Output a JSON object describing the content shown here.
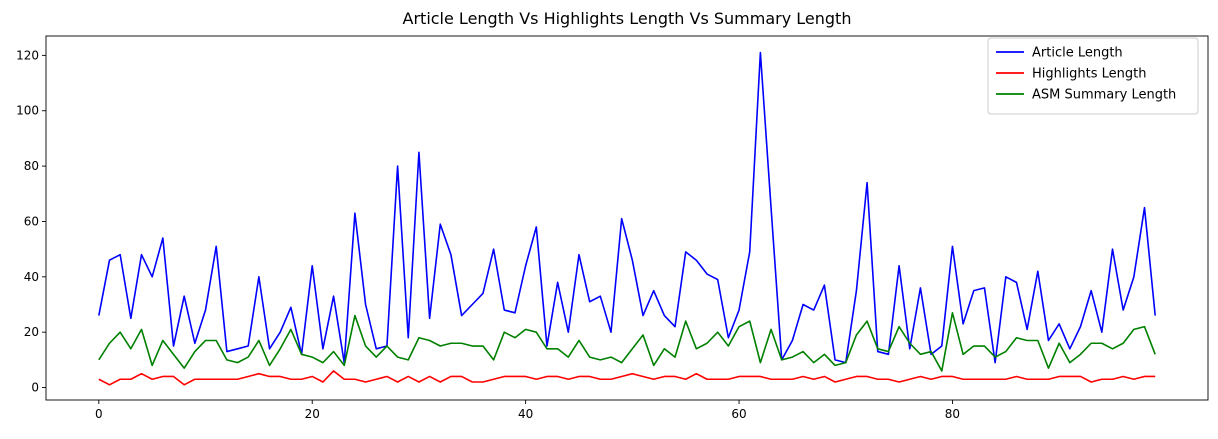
{
  "chart_data": {
    "type": "line",
    "title": "Article Length Vs Highlights Length Vs Summary Length",
    "xlabel": "",
    "ylabel": "",
    "xlim": [
      -4.95,
      103.95
    ],
    "ylim": [
      -4.5,
      127
    ],
    "grid": false,
    "legend_position": "top-right",
    "x_ticks": [
      0,
      20,
      40,
      60,
      80
    ],
    "y_ticks": [
      0,
      20,
      40,
      60,
      80,
      100,
      120
    ],
    "x": [
      0,
      1,
      2,
      3,
      4,
      5,
      6,
      7,
      8,
      9,
      10,
      11,
      12,
      13,
      14,
      15,
      16,
      17,
      18,
      19,
      20,
      21,
      22,
      23,
      24,
      25,
      26,
      27,
      28,
      29,
      30,
      31,
      32,
      33,
      34,
      35,
      36,
      37,
      38,
      39,
      40,
      41,
      42,
      43,
      44,
      45,
      46,
      47,
      48,
      49,
      50,
      51,
      52,
      53,
      54,
      55,
      56,
      57,
      58,
      59,
      60,
      61,
      62,
      63,
      64,
      65,
      66,
      67,
      68,
      69,
      70,
      71,
      72,
      73,
      74,
      75,
      76,
      77,
      78,
      79,
      80,
      81,
      82,
      83,
      84,
      85,
      86,
      87,
      88,
      89,
      90,
      91,
      92,
      93,
      94,
      95,
      96,
      97,
      98,
      99
    ],
    "series": [
      {
        "name": "Article Length",
        "color": "#0000ff",
        "values": [
          26,
          46,
          48,
          25,
          48,
          40,
          54,
          15,
          33,
          16,
          28,
          51,
          13,
          14,
          15,
          40,
          14,
          20,
          29,
          12,
          44,
          14,
          33,
          9,
          63,
          30,
          14,
          15,
          80,
          18,
          85,
          25,
          59,
          48,
          26,
          30,
          34,
          50,
          28,
          27,
          44,
          58,
          15,
          38,
          20,
          48,
          31,
          33,
          20,
          61,
          46,
          26,
          35,
          26,
          22,
          49,
          46,
          41,
          39,
          18,
          28,
          49,
          121,
          65,
          10,
          17,
          30,
          28,
          37,
          10,
          9,
          35,
          74,
          13,
          12,
          44,
          14,
          36,
          12,
          15,
          51,
          23,
          35,
          36,
          9,
          40,
          38,
          21,
          42,
          17,
          23,
          14,
          22,
          35,
          20,
          50,
          28,
          40,
          65,
          26
        ]
      },
      {
        "name": "Highlights Length",
        "color": "#ff0000",
        "values": [
          3,
          1,
          3,
          3,
          5,
          3,
          4,
          4,
          1,
          3,
          3,
          3,
          3,
          3,
          4,
          5,
          4,
          4,
          3,
          3,
          4,
          2,
          6,
          3,
          3,
          2,
          3,
          4,
          2,
          4,
          2,
          4,
          2,
          4,
          4,
          2,
          2,
          3,
          4,
          4,
          4,
          3,
          4,
          4,
          3,
          4,
          4,
          3,
          3,
          4,
          5,
          4,
          3,
          4,
          4,
          3,
          5,
          3,
          3,
          3,
          4,
          4,
          4,
          3,
          3,
          3,
          4,
          3,
          4,
          2,
          3,
          4,
          4,
          3,
          3,
          2,
          3,
          4,
          3,
          4,
          4,
          3,
          3,
          3,
          3,
          3,
          4,
          3,
          3,
          3,
          4,
          4,
          4,
          2,
          3,
          3,
          4,
          3,
          4,
          4
        ]
      },
      {
        "name": "ASM Summary Length",
        "color": "#008000",
        "values": [
          10,
          16,
          20,
          14,
          21,
          8,
          17,
          12,
          7,
          13,
          17,
          17,
          10,
          9,
          11,
          17,
          8,
          14,
          21,
          12,
          11,
          9,
          13,
          8,
          26,
          15,
          11,
          15,
          11,
          10,
          18,
          17,
          15,
          16,
          16,
          15,
          15,
          10,
          20,
          18,
          21,
          20,
          14,
          14,
          11,
          17,
          11,
          10,
          11,
          9,
          14,
          19,
          8,
          14,
          11,
          24,
          14,
          16,
          20,
          15,
          22,
          24,
          9,
          21,
          10,
          11,
          13,
          9,
          12,
          8,
          9,
          19,
          24,
          14,
          13,
          22,
          16,
          12,
          13,
          6,
          27,
          12,
          15,
          15,
          11,
          13,
          18,
          17,
          17,
          7,
          16,
          9,
          12,
          16,
          16,
          14,
          16,
          21,
          22,
          12
        ]
      }
    ]
  }
}
